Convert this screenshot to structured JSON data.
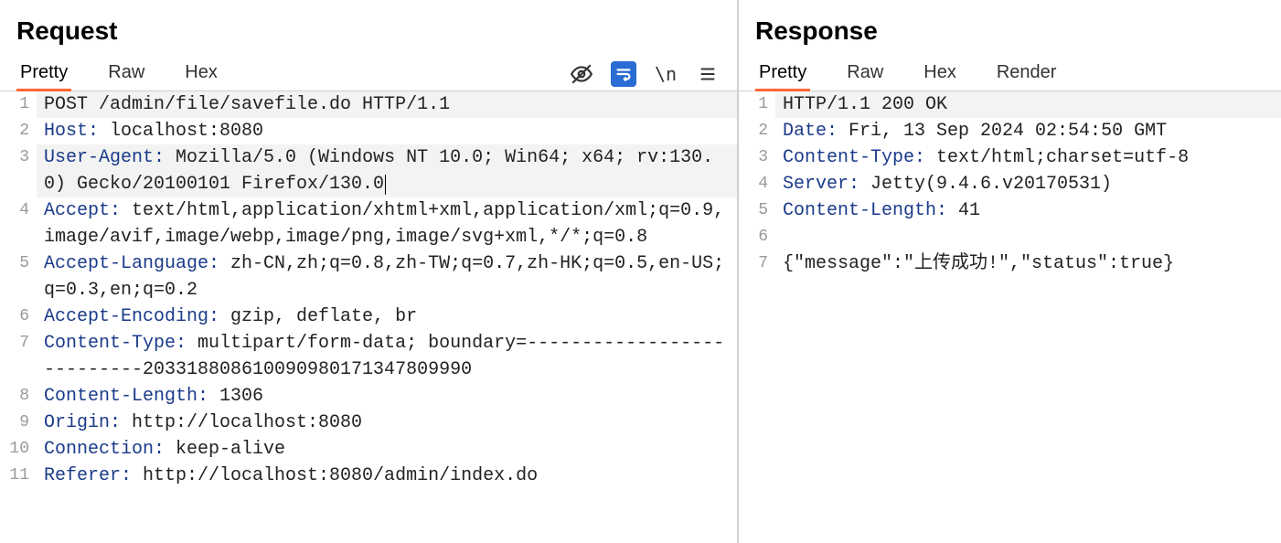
{
  "colors": {
    "accent_orange": "#ff6633",
    "header_name": "#1a3a8a",
    "gutter": "#999999",
    "border": "#d0d0d0",
    "highlight_bg": "#f3f3f3",
    "wrap_icon_bg": "#2b6cd4"
  },
  "request": {
    "title": "Request",
    "tabs": [
      "Pretty",
      "Raw",
      "Hex"
    ],
    "active_tab": 0,
    "lines": [
      {
        "n": 1,
        "hl": true,
        "parts": [
          {
            "t": "plain",
            "v": "POST /admin/file/savefile.do HTTP/1.1"
          }
        ]
      },
      {
        "n": 2,
        "parts": [
          {
            "t": "h",
            "v": "Host:"
          },
          {
            "t": "plain",
            "v": " localhost:8080"
          }
        ]
      },
      {
        "n": 3,
        "hl": true,
        "cursor_end": true,
        "parts": [
          {
            "t": "h",
            "v": "User-Agent:"
          },
          {
            "t": "plain",
            "v": " Mozilla/5.0 (Windows NT 10.0; Win64; x64; rv:130.0) Gecko/20100101 Firefox/130.0"
          }
        ]
      },
      {
        "n": 4,
        "parts": [
          {
            "t": "h",
            "v": "Accept:"
          },
          {
            "t": "plain",
            "v": " text/html,application/xhtml+xml,application/xml;q=0.9,image/avif,image/webp,image/png,image/svg+xml,*/*;q=0.8"
          }
        ]
      },
      {
        "n": 5,
        "parts": [
          {
            "t": "h",
            "v": "Accept-Language:"
          },
          {
            "t": "plain",
            "v": " zh-CN,zh;q=0.8,zh-TW;q=0.7,zh-HK;q=0.5,en-US;q=0.3,en;q=0.2"
          }
        ]
      },
      {
        "n": 6,
        "parts": [
          {
            "t": "h",
            "v": "Accept-Encoding:"
          },
          {
            "t": "plain",
            "v": " gzip, deflate, br"
          }
        ]
      },
      {
        "n": 7,
        "parts": [
          {
            "t": "h",
            "v": "Content-Type:"
          },
          {
            "t": "plain",
            "v": " multipart/form-data; boundary=---------------------------203318808610090980171347809990"
          }
        ]
      },
      {
        "n": 8,
        "parts": [
          {
            "t": "h",
            "v": "Content-Length:"
          },
          {
            "t": "plain",
            "v": " 1306"
          }
        ]
      },
      {
        "n": 9,
        "parts": [
          {
            "t": "h",
            "v": "Origin:"
          },
          {
            "t": "plain",
            "v": " http://localhost:8080"
          }
        ]
      },
      {
        "n": 10,
        "parts": [
          {
            "t": "h",
            "v": "Connection:"
          },
          {
            "t": "plain",
            "v": " keep-alive"
          }
        ]
      },
      {
        "n": 11,
        "parts": [
          {
            "t": "h",
            "v": "Referer:"
          },
          {
            "t": "plain",
            "v": " http://localhost:8080/admin/index.do"
          }
        ]
      }
    ]
  },
  "response": {
    "title": "Response",
    "tabs": [
      "Pretty",
      "Raw",
      "Hex",
      "Render"
    ],
    "active_tab": 0,
    "lines": [
      {
        "n": 1,
        "hl": true,
        "parts": [
          {
            "t": "plain",
            "v": "HTTP/1.1 200 OK"
          }
        ]
      },
      {
        "n": 2,
        "parts": [
          {
            "t": "h",
            "v": "Date:"
          },
          {
            "t": "plain",
            "v": " Fri, 13 Sep 2024 02:54:50 GMT"
          }
        ]
      },
      {
        "n": 3,
        "parts": [
          {
            "t": "h",
            "v": "Content-Type:"
          },
          {
            "t": "plain",
            "v": " text/html;charset=utf-8"
          }
        ]
      },
      {
        "n": 4,
        "parts": [
          {
            "t": "h",
            "v": "Server:"
          },
          {
            "t": "plain",
            "v": " Jetty(9.4.6.v20170531)"
          }
        ]
      },
      {
        "n": 5,
        "parts": [
          {
            "t": "h",
            "v": "Content-Length:"
          },
          {
            "t": "plain",
            "v": " 41"
          }
        ]
      },
      {
        "n": 6,
        "parts": [
          {
            "t": "plain",
            "v": ""
          }
        ]
      },
      {
        "n": 7,
        "parts": [
          {
            "t": "plain",
            "v": "{\"message\":\"上传成功!\",\"status\":true}"
          }
        ]
      }
    ]
  }
}
